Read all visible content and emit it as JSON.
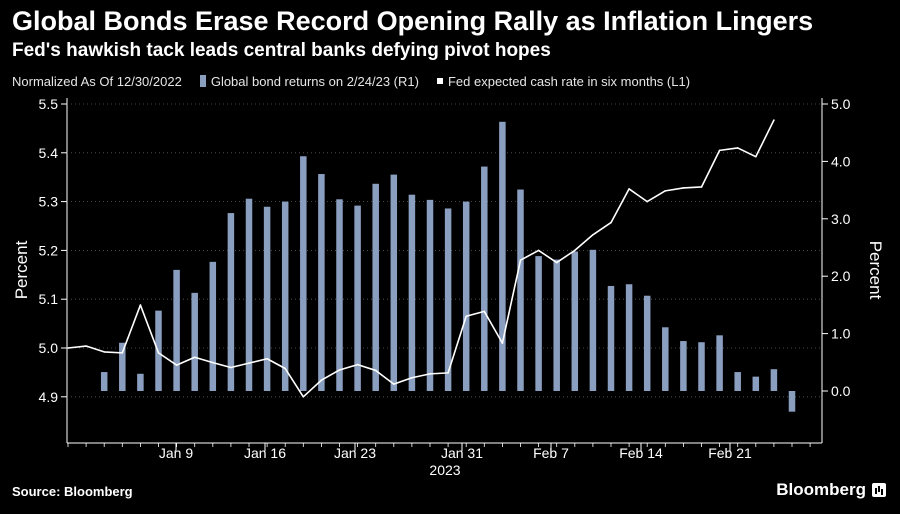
{
  "title": "Global Bonds Erase Record Opening Rally as Inflation Lingers",
  "subtitle": "Fed's hawkish tack leads central banks defying pivot hopes",
  "legend": {
    "normalized": "Normalized As Of 12/30/2022",
    "bars": "Global bond returns on 2/24/23 (R1)",
    "line": "Fed expected cash rate in six months (L1)"
  },
  "footer": {
    "source": "Source: Bloomberg",
    "brand": "Bloomberg"
  },
  "colors": {
    "bars": "#8a9ec0",
    "line": "#ffffff",
    "axis": "#ffffff",
    "background": "#000000"
  },
  "chart_data": {
    "type": "bar+line",
    "title": "Global Bonds Erase Record Opening Rally as Inflation Lingers",
    "subtitle": "Fed's hawkish tack leads central banks defying pivot hopes",
    "x_tick_labels": [
      "Jan 9",
      "Jan 16",
      "Jan 23",
      "Jan 31",
      "Feb 7",
      "Feb 14",
      "Feb 21"
    ],
    "x_year_label": "2023",
    "left_axis": {
      "label": "Percent",
      "range": [
        4.84,
        5.52
      ],
      "ticks": [
        "4.9",
        "5.0",
        "5.1",
        "5.2",
        "5.3",
        "5.4",
        "5.5"
      ],
      "tick_values": [
        4.9,
        5.0,
        5.1,
        5.2,
        5.3,
        5.4,
        5.5
      ]
    },
    "right_axis": {
      "label": "Percent",
      "range": [
        -0.85,
        5.1
      ],
      "ticks": [
        "0.0",
        "1.0",
        "2.0",
        "3.0",
        "4.0",
        "5.0"
      ],
      "tick_values": [
        0,
        1,
        2,
        3,
        4,
        5
      ]
    },
    "bars": {
      "name": "Global bond returns on 2/24/23 (R1)",
      "axis": "right",
      "values": [
        0.33,
        0.84,
        0.3,
        1.4,
        2.11,
        1.71,
        2.25,
        3.1,
        3.35,
        3.21,
        3.3,
        4.09,
        3.78,
        3.34,
        3.23,
        3.61,
        3.77,
        3.42,
        3.33,
        3.18,
        3.3,
        3.91,
        4.69,
        3.51,
        2.35,
        2.29,
        2.43,
        2.46,
        1.83,
        1.86,
        1.66,
        1.11,
        0.87,
        0.85,
        0.97,
        0.33,
        0.25,
        0.38,
        -0.36
      ]
    },
    "line": {
      "name": "Fed expected cash rate in six months (L1)",
      "axis": "left",
      "values": [
        5.0,
        5.004,
        4.992,
        4.99,
        5.088,
        4.99,
        4.965,
        4.981,
        4.97,
        4.96,
        4.969,
        4.978,
        4.958,
        4.9,
        4.934,
        4.955,
        4.966,
        4.954,
        4.926,
        4.939,
        4.947,
        4.949,
        5.065,
        5.075,
        5.01,
        5.18,
        5.2,
        5.175,
        5.2,
        5.232,
        5.257,
        5.326,
        5.3,
        5.322,
        5.328,
        5.33,
        5.405,
        5.41,
        5.392,
        5.467
      ]
    }
  }
}
